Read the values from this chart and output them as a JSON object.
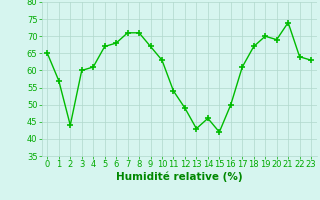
{
  "x": [
    0,
    1,
    2,
    3,
    4,
    5,
    6,
    7,
    8,
    9,
    10,
    11,
    12,
    13,
    14,
    15,
    16,
    17,
    18,
    19,
    20,
    21,
    22,
    23
  ],
  "y": [
    65,
    57,
    44,
    60,
    61,
    67,
    68,
    71,
    71,
    67,
    63,
    54,
    49,
    43,
    46,
    42,
    50,
    61,
    67,
    70,
    69,
    74,
    64,
    63
  ],
  "line_color": "#00bb00",
  "marker": "+",
  "marker_size": 5,
  "marker_lw": 1.2,
  "bg_color": "#d6f5ef",
  "grid_color": "#b0d8cc",
  "xlabel": "Humidité relative (%)",
  "xlabel_color": "#008800",
  "xlabel_fontsize": 7.5,
  "tick_color": "#00aa00",
  "tick_fontsize": 6,
  "ylim": [
    35,
    80
  ],
  "yticks": [
    35,
    40,
    45,
    50,
    55,
    60,
    65,
    70,
    75,
    80
  ],
  "xlim": [
    -0.5,
    23.5
  ],
  "line_width": 1.0
}
